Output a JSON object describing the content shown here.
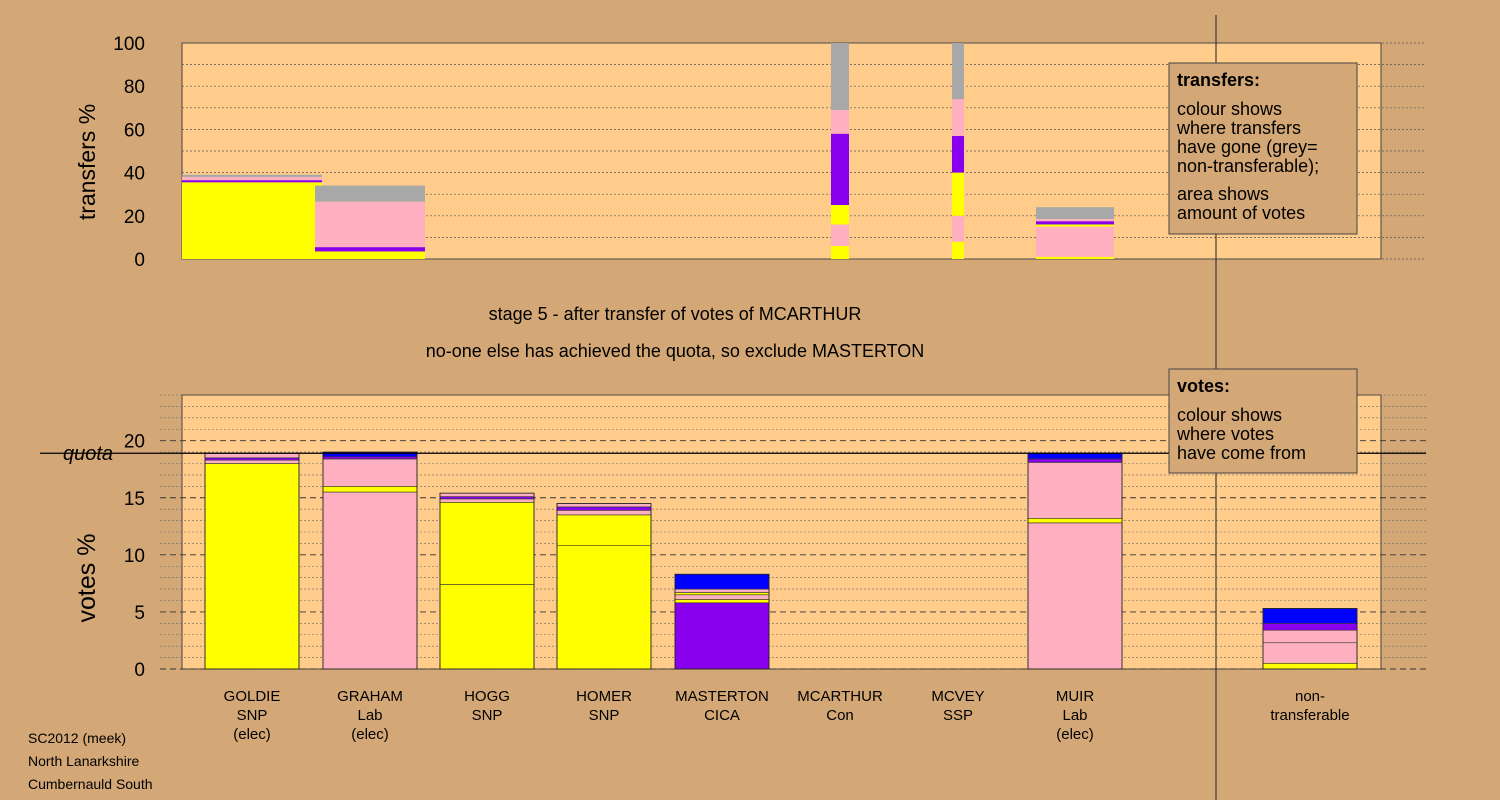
{
  "chart_data": [
    {
      "type": "bar",
      "ylabel": "transfers %",
      "ylim": [
        0,
        100
      ],
      "yticks": [
        0,
        20,
        40,
        60,
        80,
        100
      ],
      "grid": true,
      "legend": {
        "placement": "top-right",
        "title": "transfers:",
        "lines1": [
          "colour shows",
          "where transfers",
          "have gone (grey=",
          "non-transferable);"
        ],
        "lines2": [
          "area shows",
          "amount of votes"
        ]
      },
      "categories": [
        "GOLDIE",
        "GRAHAM",
        "HOGG",
        "HOMER",
        "MASTERTON",
        "MCARTHUR",
        "MCVEY",
        "MUIR",
        "non-transferable"
      ],
      "stacks": [
        [
          {
            "value": 2,
            "color": "#ffff00"
          },
          {
            "value": 33.5,
            "color": "#ffff00"
          },
          {
            "value": 1,
            "color": "#8800ee"
          },
          {
            "value": 1.5,
            "color": "#ffb0c0"
          },
          {
            "value": 1,
            "color": "#a8a8a8"
          }
        ],
        [
          {
            "value": 3.5,
            "color": "#ffff00"
          },
          {
            "value": 2,
            "color": "#8800ee"
          },
          {
            "value": 21,
            "color": "#ffb0c0"
          },
          {
            "value": 7.5,
            "color": "#a8a8a8"
          }
        ],
        [],
        [],
        [],
        [
          {
            "value": 6,
            "color": "#ffff00"
          },
          {
            "value": 10,
            "color": "#ffb0c0"
          },
          {
            "value": 9,
            "color": "#ffff00"
          },
          {
            "value": 33,
            "color": "#8800ee"
          },
          {
            "value": 11,
            "color": "#ffb0c0"
          },
          {
            "value": 31,
            "color": "#a8a8a8"
          }
        ],
        [
          {
            "value": 8,
            "color": "#ffff00"
          },
          {
            "value": 12,
            "color": "#ffb0c0"
          },
          {
            "value": 20,
            "color": "#ffff00"
          },
          {
            "value": 17,
            "color": "#8800ee"
          },
          {
            "value": 17,
            "color": "#ffb0c0"
          },
          {
            "value": 26,
            "color": "#a8a8a8"
          }
        ],
        [
          {
            "value": 1,
            "color": "#ffff00"
          },
          {
            "value": 14,
            "color": "#ffb0c0"
          },
          {
            "value": 1,
            "color": "#ffff00"
          },
          {
            "value": 1.5,
            "color": "#8800ee"
          },
          {
            "value": 1,
            "color": "#ffb0c0"
          },
          {
            "value": 5.5,
            "color": "#a8a8a8"
          }
        ],
        []
      ]
    },
    {
      "type": "bar",
      "ylabel": "votes %",
      "ylim": [
        0,
        24
      ],
      "yticks": [
        0,
        5,
        10,
        15,
        20
      ],
      "quota": 18.9,
      "quota_label": "quota",
      "grid": true,
      "legend": {
        "placement": "top-right",
        "title": "votes:",
        "lines1": [
          "colour shows",
          "where votes",
          "have come from"
        ],
        "lines2": []
      },
      "categories": [
        {
          "name": "GOLDIE",
          "party": "SNP",
          "note": "(elec)"
        },
        {
          "name": "GRAHAM",
          "party": "Lab",
          "note": "(elec)"
        },
        {
          "name": "HOGG",
          "party": "SNP",
          "note": ""
        },
        {
          "name": "HOMER",
          "party": "SNP",
          "note": ""
        },
        {
          "name": "MASTERTON",
          "party": "CICA",
          "note": ""
        },
        {
          "name": "MCARTHUR",
          "party": "Con",
          "note": ""
        },
        {
          "name": "MCVEY",
          "party": "SSP",
          "note": ""
        },
        {
          "name": "MUIR",
          "party": "Lab",
          "note": "(elec)"
        },
        {
          "name": "non-",
          "party": "transferable",
          "note": ""
        }
      ],
      "stacks": [
        [
          {
            "value": 18.0,
            "color": "#ffff00"
          },
          {
            "value": 0.3,
            "color": "#ffb0c0"
          },
          {
            "value": 0.2,
            "color": "#8800ee"
          },
          {
            "value": 0.4,
            "color": "#ffb0c0"
          }
        ],
        [
          {
            "value": 15.5,
            "color": "#ffb0c0"
          },
          {
            "value": 0.5,
            "color": "#ffff00"
          },
          {
            "value": 2.4,
            "color": "#ffb0c0"
          },
          {
            "value": 0.2,
            "color": "#8800ee"
          },
          {
            "value": 0.4,
            "color": "#0000ff"
          }
        ],
        [
          {
            "value": 7.4,
            "color": "#ffff00"
          },
          {
            "value": 7.2,
            "color": "#ffff00"
          },
          {
            "value": 0.3,
            "color": "#ffb0c0"
          },
          {
            "value": 0.2,
            "color": "#8800ee"
          },
          {
            "value": 0.3,
            "color": "#ffb0c0"
          }
        ],
        [
          {
            "value": 10.8,
            "color": "#ffff00"
          },
          {
            "value": 2.7,
            "color": "#ffff00"
          },
          {
            "value": 0.4,
            "color": "#ffb0c0"
          },
          {
            "value": 0.3,
            "color": "#8800ee"
          },
          {
            "value": 0.3,
            "color": "#ffb0c0"
          }
        ],
        [
          {
            "value": 5.8,
            "color": "#8800ee"
          },
          {
            "value": 0.3,
            "color": "#ffff00"
          },
          {
            "value": 0.4,
            "color": "#ffb0c0"
          },
          {
            "value": 0.2,
            "color": "#ffff00"
          },
          {
            "value": 0.3,
            "color": "#ffb0c0"
          },
          {
            "value": 1.3,
            "color": "#0000ff"
          }
        ],
        [],
        [],
        [
          {
            "value": 12.8,
            "color": "#ffb0c0"
          },
          {
            "value": 0.4,
            "color": "#ffff00"
          },
          {
            "value": 4.9,
            "color": "#ffb0c0"
          },
          {
            "value": 0.3,
            "color": "#8800ee"
          },
          {
            "value": 0.5,
            "color": "#0000ff"
          }
        ],
        [
          {
            "value": 0.5,
            "color": "#ffff00"
          },
          {
            "value": 1.8,
            "color": "#ffb0c0"
          },
          {
            "value": 1.1,
            "color": "#ffb0c0"
          },
          {
            "value": 0.6,
            "color": "#8800ee"
          },
          {
            "value": 1.3,
            "color": "#0000ff"
          }
        ]
      ]
    }
  ],
  "title_lines": [
    "stage 5 - after transfer of votes of MCARTHUR",
    "no-one else has achieved the quota, so exclude MASTERTON"
  ],
  "footer_lines": [
    "SC2012 (meek)",
    "North Lanarkshire",
    "Cumbernauld South"
  ]
}
